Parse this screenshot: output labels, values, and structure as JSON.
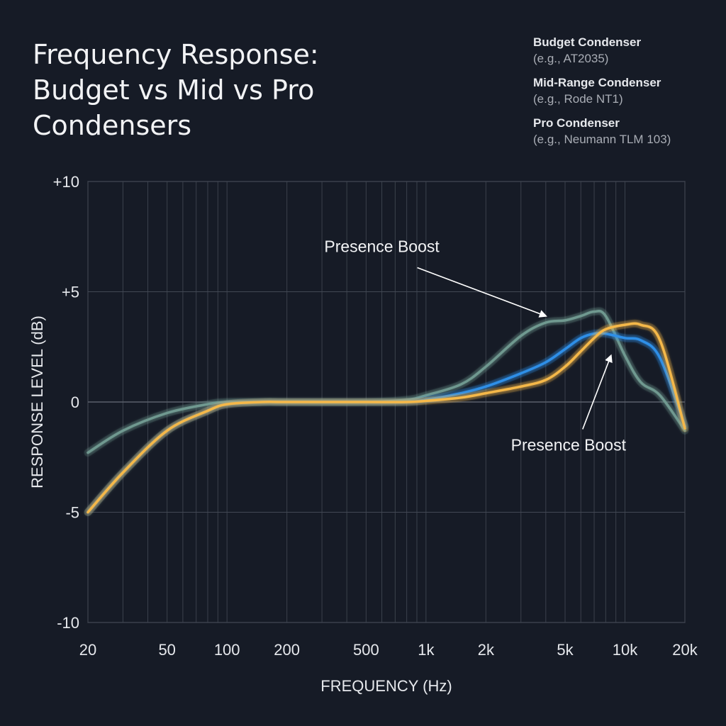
{
  "chart_data": {
    "type": "line",
    "title": [
      "Frequency Response:",
      "Budget vs Mid vs Pro",
      "Condensers"
    ],
    "xlabel": "FREQUENCY (Hz)",
    "ylabel": "RESPONSE LEVEL (dB)",
    "x_scale": "log",
    "xlim": [
      20,
      20000
    ],
    "ylim": [
      -10,
      10
    ],
    "x_ticks": [
      20,
      50,
      100,
      200,
      500,
      1000,
      2000,
      5000,
      10000,
      20000
    ],
    "x_tick_labels": [
      "20",
      "50",
      "100",
      "200",
      "500",
      "1k",
      "2k",
      "5k",
      "10k",
      "20k"
    ],
    "y_ticks": [
      10,
      5,
      0,
      -5,
      -10
    ],
    "y_tick_labels": [
      "+10",
      "+5",
      "0",
      "-5",
      "-10"
    ],
    "grid": true,
    "legend_position": "top-right",
    "series": [
      {
        "name": "Budget Condenser",
        "sublabel": "(e.g., AT2035)",
        "color": "#6f9990",
        "x": [
          20,
          30,
          50,
          80,
          100,
          150,
          200,
          500,
          800,
          1000,
          1500,
          2000,
          3000,
          4000,
          5000,
          6000,
          7000,
          8000,
          10000,
          12000,
          15000,
          20000
        ],
        "y": [
          -2.3,
          -1.3,
          -0.5,
          -0.1,
          0,
          0,
          0,
          0,
          0.1,
          0.3,
          0.8,
          1.6,
          3.0,
          3.6,
          3.7,
          3.9,
          4.1,
          3.9,
          2.1,
          0.9,
          0.3,
          -1.3
        ]
      },
      {
        "name": "Mid-Range Condenser",
        "sublabel": "(e.g., Rode NT1)",
        "color": "#2f8fe8",
        "x": [
          20,
          30,
          50,
          80,
          100,
          150,
          200,
          500,
          800,
          1000,
          1500,
          2000,
          3000,
          4000,
          5000,
          6000,
          7000,
          8000,
          10000,
          12000,
          15000,
          20000
        ],
        "y": [
          -5,
          -3.2,
          -1.3,
          -0.4,
          -0.1,
          0,
          0,
          0,
          0,
          0.1,
          0.4,
          0.7,
          1.3,
          1.8,
          2.4,
          2.9,
          3.1,
          3.1,
          2.9,
          2.8,
          2.0,
          -1.1
        ]
      },
      {
        "name": "Pro Condenser",
        "sublabel": "(e.g., Neumann TLM 103)",
        "color": "#f5b84a",
        "x": [
          20,
          30,
          50,
          80,
          100,
          150,
          200,
          500,
          800,
          1000,
          1500,
          2000,
          3000,
          4000,
          5000,
          6000,
          7000,
          8000,
          10000,
          12000,
          15000,
          20000
        ],
        "y": [
          -5,
          -3.2,
          -1.3,
          -0.4,
          -0.1,
          0,
          0,
          0,
          0,
          0.05,
          0.2,
          0.4,
          0.7,
          1.0,
          1.6,
          2.3,
          2.9,
          3.3,
          3.5,
          3.5,
          2.8,
          -1.2
        ]
      }
    ],
    "annotations": [
      {
        "text": "Presence Boost",
        "label_x": 600,
        "label_y": 6.8,
        "target_x": 4000,
        "target_y": 3.9
      },
      {
        "text": "Presence Boost",
        "label_x": 5200,
        "label_y": -2.2,
        "target_x": 8500,
        "target_y": 2.1
      }
    ]
  }
}
